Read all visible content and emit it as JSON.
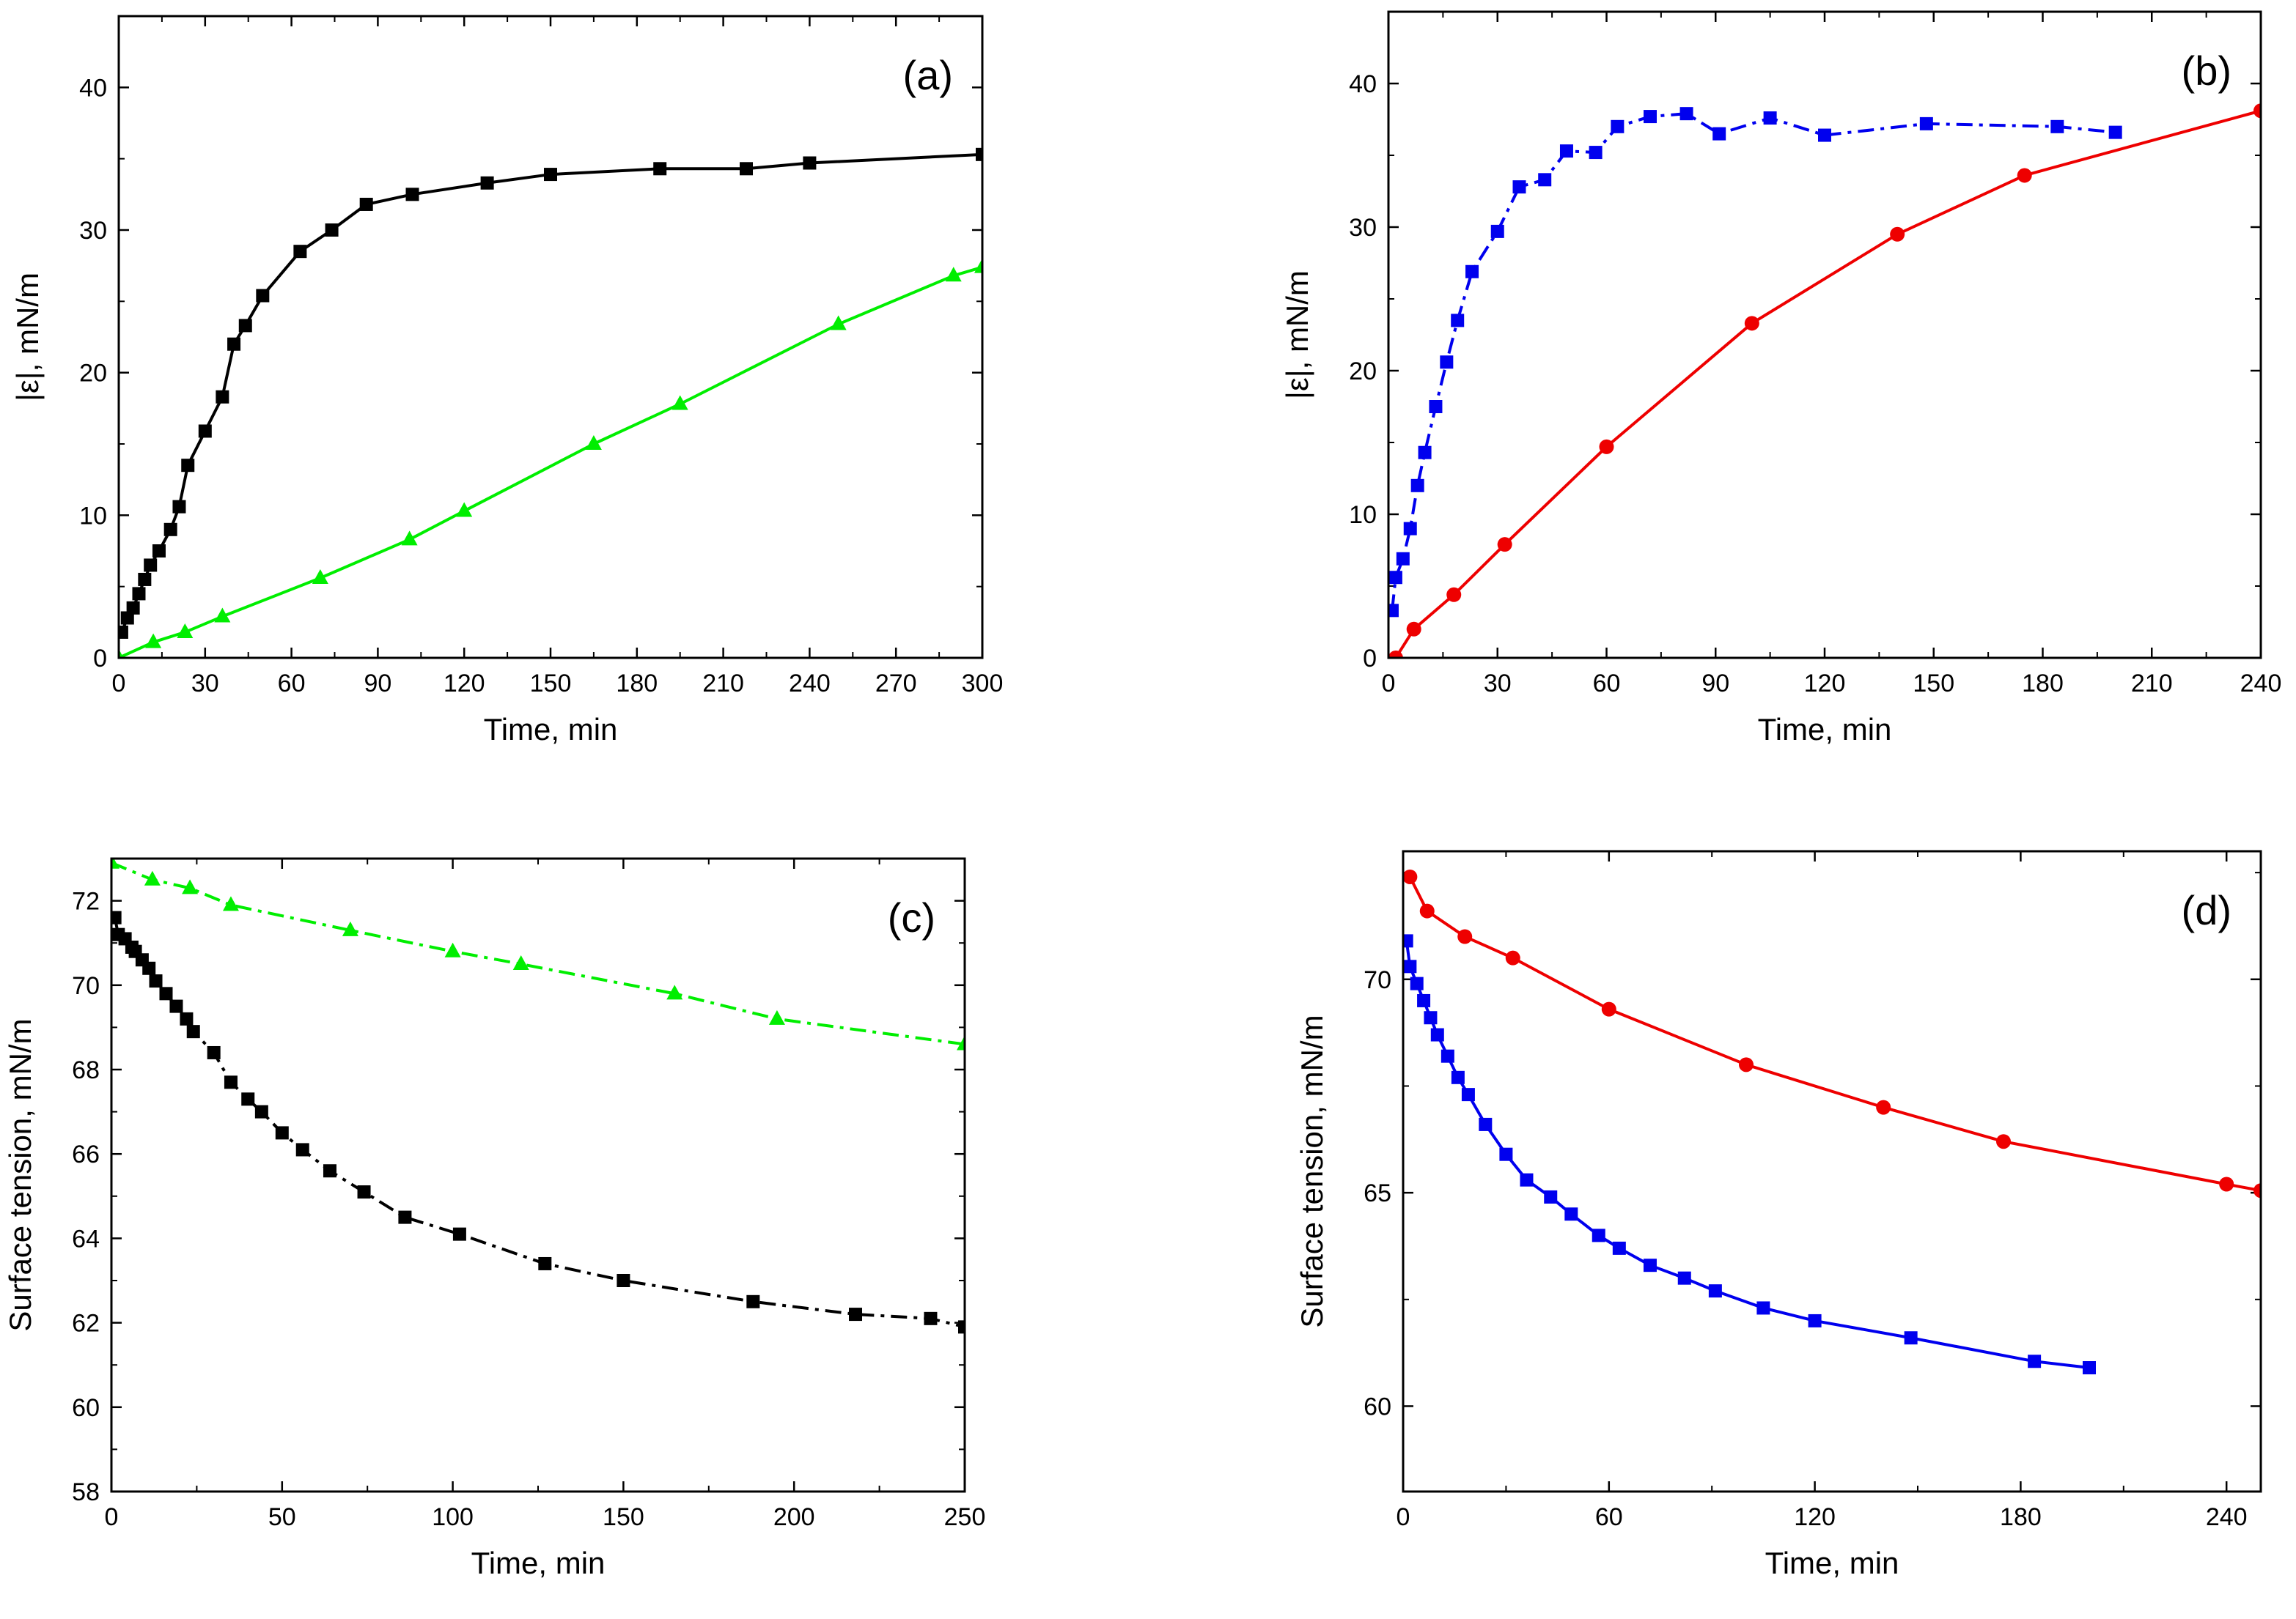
{
  "chart_data": [
    {
      "id": "a",
      "type": "line",
      "panel_label": "(a)",
      "xlabel": "Time, min",
      "ylabel": "|ε|, mN/m",
      "xlim": [
        0,
        300
      ],
      "ylim": [
        0,
        45
      ],
      "xticks": [
        0,
        30,
        60,
        90,
        120,
        150,
        180,
        210,
        240,
        270,
        300
      ],
      "yticks": [
        0,
        10,
        20,
        30,
        40
      ],
      "grid": false,
      "series": [
        {
          "color": "#000000",
          "marker": "square",
          "line": "solid",
          "points": [
            [
              1,
              1.8
            ],
            [
              3,
              2.8
            ],
            [
              5,
              3.5
            ],
            [
              7,
              4.5
            ],
            [
              9,
              5.5
            ],
            [
              11,
              6.5
            ],
            [
              14,
              7.5
            ],
            [
              18,
              9
            ],
            [
              21,
              10.6
            ],
            [
              24,
              13.5
            ],
            [
              30,
              15.9
            ],
            [
              36,
              18.3
            ],
            [
              40,
              22
            ],
            [
              44,
              23.3
            ],
            [
              50,
              25.4
            ],
            [
              63,
              28.5
            ],
            [
              74,
              30
            ],
            [
              86,
              31.8
            ],
            [
              102,
              32.5
            ],
            [
              128,
              33.3
            ],
            [
              150,
              33.9
            ],
            [
              188,
              34.3
            ],
            [
              218,
              34.3
            ],
            [
              240,
              34.7
            ],
            [
              300,
              35.3
            ]
          ]
        },
        {
          "color": "#00ee00",
          "marker": "triangle",
          "line": "solid",
          "points": [
            [
              0,
              0
            ],
            [
              12,
              1.1
            ],
            [
              23,
              1.8
            ],
            [
              36,
              2.9
            ],
            [
              70,
              5.6
            ],
            [
              101,
              8.3
            ],
            [
              120,
              10.3
            ],
            [
              165,
              15
            ],
            [
              195,
              17.8
            ],
            [
              250,
              23.4
            ],
            [
              290,
              26.8
            ],
            [
              300,
              27.4
            ]
          ]
        }
      ]
    },
    {
      "id": "b",
      "type": "line",
      "panel_label": "(b)",
      "xlabel": "Time, min",
      "ylabel": "|ε|, mN/m",
      "xlim": [
        0,
        240
      ],
      "ylim": [
        0,
        45
      ],
      "xticks": [
        0,
        30,
        60,
        90,
        120,
        150,
        180,
        210,
        240
      ],
      "yticks": [
        0,
        10,
        20,
        30,
        40
      ],
      "grid": false,
      "series": [
        {
          "color": "#0000ee",
          "marker": "square",
          "line": "dash-dot",
          "points": [
            [
              1,
              3.3
            ],
            [
              2,
              5.6
            ],
            [
              4,
              6.9
            ],
            [
              6,
              9
            ],
            [
              8,
              12
            ],
            [
              10,
              14.3
            ],
            [
              13,
              17.5
            ],
            [
              16,
              20.6
            ],
            [
              19,
              23.5
            ],
            [
              23,
              26.9
            ],
            [
              30,
              29.7
            ],
            [
              36,
              32.8
            ],
            [
              43,
              33.3
            ],
            [
              49,
              35.3
            ],
            [
              57,
              35.2
            ],
            [
              63,
              37
            ],
            [
              72,
              37.7
            ],
            [
              82,
              37.9
            ],
            [
              91,
              36.5
            ],
            [
              105,
              37.6
            ],
            [
              120,
              36.4
            ],
            [
              148,
              37.2
            ],
            [
              184,
              37
            ],
            [
              200,
              36.6
            ]
          ]
        },
        {
          "color": "#ee0000",
          "marker": "circle",
          "line": "solid",
          "points": [
            [
              2,
              0
            ],
            [
              7,
              2
            ],
            [
              18,
              4.4
            ],
            [
              32,
              7.9
            ],
            [
              60,
              14.7
            ],
            [
              100,
              23.3
            ],
            [
              140,
              29.5
            ],
            [
              175,
              33.6
            ],
            [
              240,
              38.1
            ]
          ]
        }
      ]
    },
    {
      "id": "c",
      "type": "line",
      "panel_label": "(c)",
      "xlabel": "Time, min",
      "ylabel": "Surface tension, mN/m",
      "xlim": [
        0,
        250
      ],
      "ylim": [
        58,
        73
      ],
      "xticks": [
        0,
        50,
        100,
        150,
        200,
        250
      ],
      "yticks": [
        58,
        60,
        62,
        64,
        66,
        68,
        70,
        72
      ],
      "grid": false,
      "series": [
        {
          "color": "#00ee00",
          "marker": "triangle",
          "line": "dash-dot",
          "points": [
            [
              0,
              72.9
            ],
            [
              12,
              72.5
            ],
            [
              23,
              72.3
            ],
            [
              35,
              71.9
            ],
            [
              70,
              71.3
            ],
            [
              100,
              70.8
            ],
            [
              120,
              70.5
            ],
            [
              165,
              69.8
            ],
            [
              195,
              69.2
            ],
            [
              250,
              68.6
            ]
          ]
        },
        {
          "color": "#000000",
          "marker": "square",
          "line": "dash-dot",
          "points": [
            [
              1,
              71.6
            ],
            [
              2,
              71.2
            ],
            [
              4,
              71.1
            ],
            [
              6,
              70.9
            ],
            [
              7,
              70.8
            ],
            [
              9,
              70.6
            ],
            [
              11,
              70.4
            ],
            [
              13,
              70.1
            ],
            [
              16,
              69.8
            ],
            [
              19,
              69.5
            ],
            [
              22,
              69.2
            ],
            [
              24,
              68.9
            ],
            [
              30,
              68.4
            ],
            [
              35,
              67.7
            ],
            [
              40,
              67.3
            ],
            [
              44,
              67
            ],
            [
              50,
              66.5
            ],
            [
              56,
              66.1
            ],
            [
              64,
              65.6
            ],
            [
              74,
              65.1
            ],
            [
              86,
              64.5
            ],
            [
              102,
              64.1
            ],
            [
              127,
              63.4
            ],
            [
              150,
              63
            ],
            [
              188,
              62.5
            ],
            [
              218,
              62.2
            ],
            [
              240,
              62.1
            ],
            [
              250,
              61.9
            ]
          ]
        }
      ]
    },
    {
      "id": "d",
      "type": "line",
      "panel_label": "(d)",
      "xlabel": "Time, min",
      "ylabel": "Surface tension, mN/m",
      "xlim": [
        0,
        250
      ],
      "ylim": [
        58,
        73
      ],
      "xticks": [
        0,
        60,
        120,
        180,
        240
      ],
      "yticks": [
        60,
        65,
        70
      ],
      "grid": false,
      "series": [
        {
          "color": "#ee0000",
          "marker": "circle",
          "line": "solid",
          "points": [
            [
              2,
              72.4
            ],
            [
              7,
              71.6
            ],
            [
              18,
              71
            ],
            [
              32,
              70.5
            ],
            [
              60,
              69.3
            ],
            [
              100,
              68
            ],
            [
              140,
              67
            ],
            [
              175,
              66.2
            ],
            [
              240,
              65.2
            ],
            [
              250,
              65.05
            ]
          ]
        },
        {
          "color": "#0000ee",
          "marker": "square",
          "line": "solid",
          "points": [
            [
              1,
              70.9
            ],
            [
              2,
              70.3
            ],
            [
              4,
              69.9
            ],
            [
              6,
              69.5
            ],
            [
              8,
              69.1
            ],
            [
              10,
              68.7
            ],
            [
              13,
              68.2
            ],
            [
              16,
              67.7
            ],
            [
              19,
              67.3
            ],
            [
              24,
              66.6
            ],
            [
              30,
              65.9
            ],
            [
              36,
              65.3
            ],
            [
              43,
              64.9
            ],
            [
              49,
              64.5
            ],
            [
              57,
              64
            ],
            [
              63,
              63.7
            ],
            [
              72,
              63.3
            ],
            [
              82,
              63
            ],
            [
              91,
              62.7
            ],
            [
              105,
              62.3
            ],
            [
              120,
              62
            ],
            [
              148,
              61.6
            ],
            [
              184,
              61.05
            ],
            [
              200,
              60.9
            ]
          ]
        }
      ]
    }
  ]
}
